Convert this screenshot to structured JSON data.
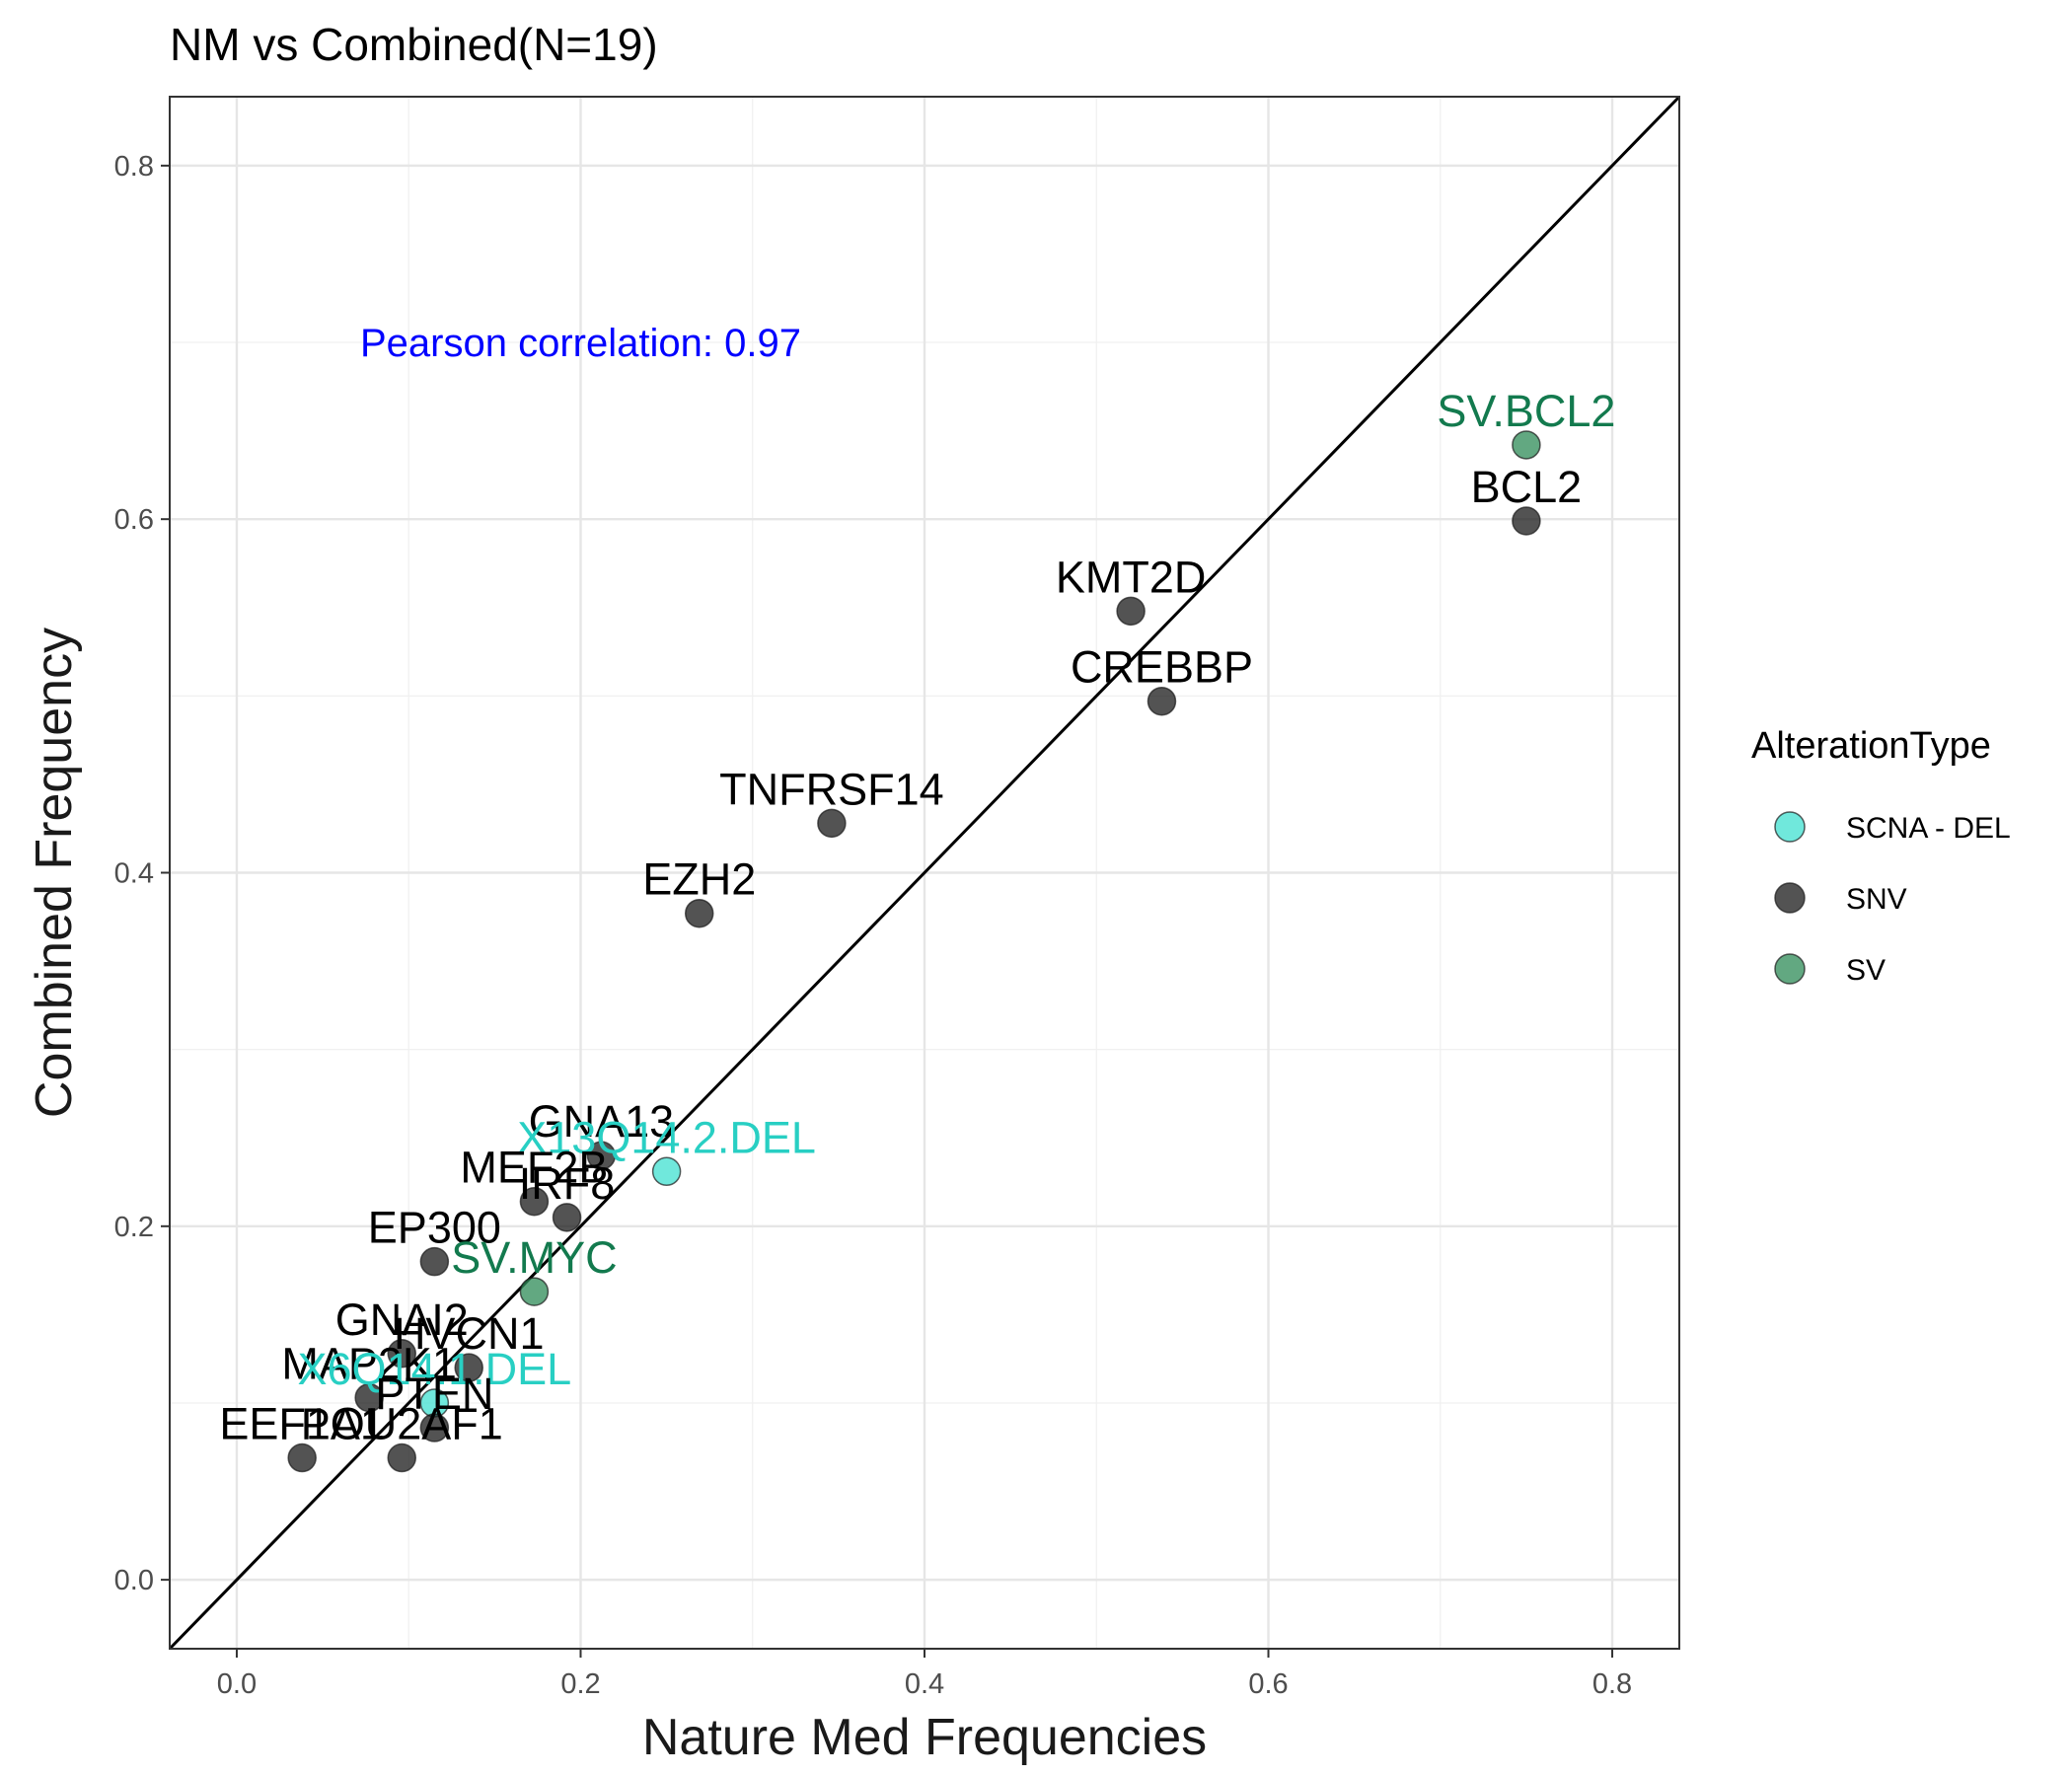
{
  "chart_data": {
    "type": "scatter",
    "title": "NM vs Combined(N=19)",
    "xlabel": "Nature Med Frequencies",
    "ylabel": "Combined Frequency",
    "xlim": [
      -0.039,
      0.839
    ],
    "ylim": [
      -0.039,
      0.839
    ],
    "xticks": [
      "0.0",
      "0.2",
      "0.4",
      "0.6",
      "0.8"
    ],
    "yticks": [
      "0.0",
      "0.2",
      "0.4",
      "0.6",
      "0.8"
    ],
    "grid": true,
    "reference_line": "y = x",
    "annotation": {
      "text": "Pearson correlation: 0.97",
      "x": 0.2,
      "y": 0.7,
      "color": "#0000FF"
    },
    "legend": {
      "title": "AlterationType",
      "position": "right",
      "entries": [
        {
          "name": "SCNA - DEL",
          "color": "#40E0D0"
        },
        {
          "name": "SNV",
          "color": "#1a1a1a"
        },
        {
          "name": "SV",
          "color": "#2E8B57"
        }
      ]
    },
    "label_colors": {
      "SCNA - DEL": "#28CFC3",
      "SNV": "#000000",
      "SV": "#137A4E"
    },
    "points": [
      {
        "label": "SV.BCL2",
        "type": "SV",
        "x": 0.75,
        "y": 0.642
      },
      {
        "label": "BCL2",
        "type": "SNV",
        "x": 0.75,
        "y": 0.599
      },
      {
        "label": "KMT2D",
        "type": "SNV",
        "x": 0.52,
        "y": 0.548
      },
      {
        "label": "CREBBP",
        "type": "SNV",
        "x": 0.538,
        "y": 0.497
      },
      {
        "label": "TNFRSF14",
        "type": "SNV",
        "x": 0.346,
        "y": 0.428
      },
      {
        "label": "EZH2",
        "type": "SNV",
        "x": 0.269,
        "y": 0.377
      },
      {
        "label": "GNA13",
        "type": "SNV",
        "x": 0.212,
        "y": 0.24
      },
      {
        "label": "X13Q14.2.DEL",
        "type": "SCNA - DEL",
        "x": 0.25,
        "y": 0.231
      },
      {
        "label": "MEF2B",
        "type": "SNV",
        "x": 0.173,
        "y": 0.214
      },
      {
        "label": "IRF8",
        "type": "SNV",
        "x": 0.192,
        "y": 0.205
      },
      {
        "label": "EP300",
        "type": "SNV",
        "x": 0.115,
        "y": 0.18
      },
      {
        "label": "SV.MYC",
        "type": "SV",
        "x": 0.173,
        "y": 0.163
      },
      {
        "label": "GNAI2",
        "type": "SNV",
        "x": 0.096,
        "y": 0.128
      },
      {
        "label": "HVCN1",
        "type": "SNV",
        "x": 0.135,
        "y": 0.12
      },
      {
        "label": "MAP2K1",
        "type": "SNV",
        "x": 0.077,
        "y": 0.103
      },
      {
        "label": "X6Q14.1.DEL",
        "type": "SCNA - DEL",
        "x": 0.115,
        "y": 0.1
      },
      {
        "label": "PTEN",
        "type": "SNV",
        "x": 0.115,
        "y": 0.086
      },
      {
        "label": "EEF1A1",
        "type": "SNV",
        "x": 0.038,
        "y": 0.069
      },
      {
        "label": "POU2AF1",
        "type": "SNV",
        "x": 0.096,
        "y": 0.069
      }
    ]
  }
}
